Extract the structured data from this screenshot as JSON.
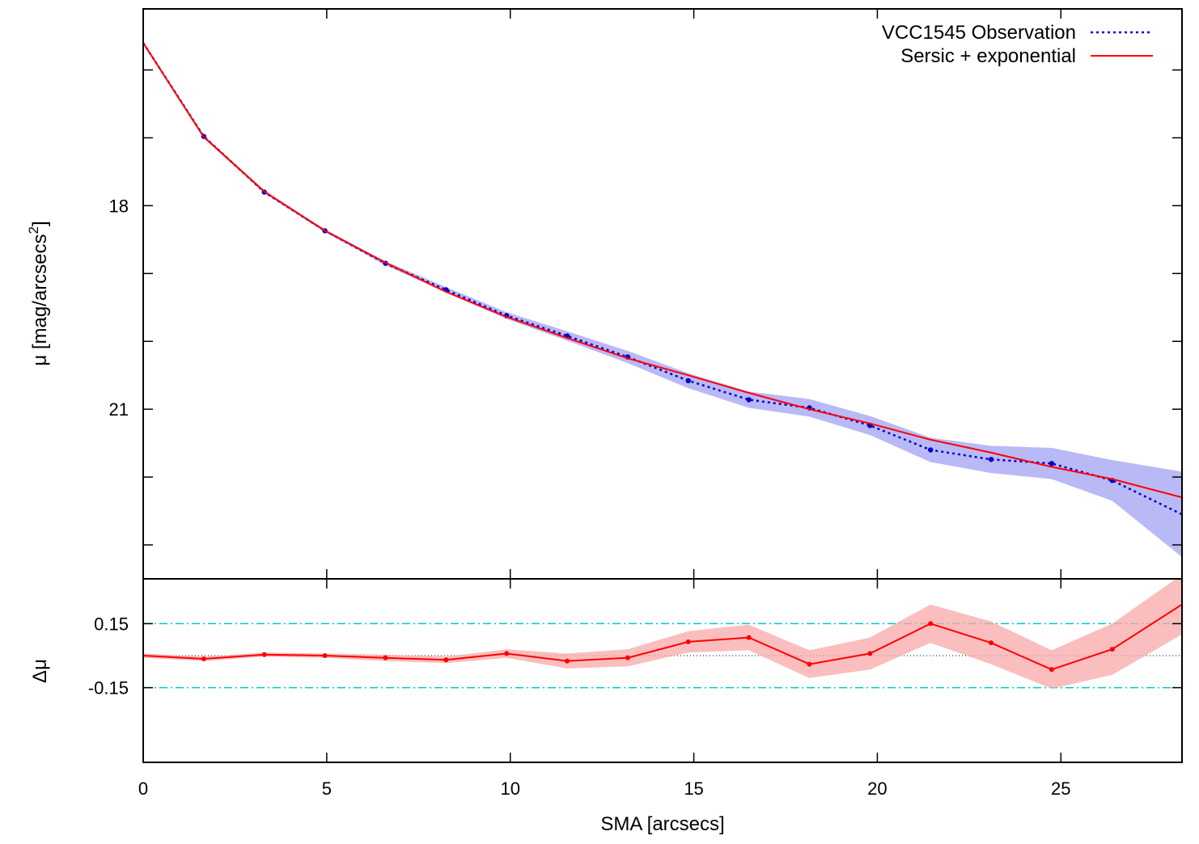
{
  "chart_data": [
    {
      "panel": "profile",
      "type": "line",
      "xlabel": "SMA [arcsecs]",
      "ylabel": "μ [mag/arcsecs",
      "ylabel_sup": "2",
      "ylabel_close": "]",
      "xlim": [
        0,
        28.3
      ],
      "ylim": [
        23.5,
        15.1
      ],
      "y_inverted": true,
      "x_ticks": [
        0,
        5,
        10,
        15,
        20,
        25
      ],
      "x_tick_labels": [
        "0",
        "5",
        "10",
        "15",
        "20",
        "25"
      ],
      "y_ticks": [
        16,
        17,
        18,
        19,
        20,
        21,
        22,
        23
      ],
      "y_tick_labels": [
        "",
        "",
        "18",
        "",
        "",
        "21",
        "",
        ""
      ],
      "legend_position": "top-right",
      "series": [
        {
          "name": "VCC1545 Observation",
          "style": "dotted",
          "color": "#0000cc",
          "band_color": "#8080ee",
          "x": [
            0.0,
            1.65,
            3.3,
            4.95,
            6.6,
            8.25,
            9.9,
            11.55,
            13.2,
            14.85,
            16.5,
            18.15,
            19.8,
            21.45,
            23.1,
            24.75,
            26.4,
            28.3
          ],
          "y": [
            15.6,
            16.98,
            17.8,
            18.37,
            18.85,
            19.24,
            19.62,
            19.92,
            20.23,
            20.58,
            20.86,
            20.98,
            21.24,
            21.6,
            21.74,
            21.8,
            22.05,
            22.55
          ],
          "err": [
            0.01,
            0.02,
            0.02,
            0.02,
            0.03,
            0.04,
            0.05,
            0.07,
            0.09,
            0.11,
            0.12,
            0.13,
            0.14,
            0.18,
            0.2,
            0.23,
            0.3,
            0.63
          ],
          "markers": true
        },
        {
          "name": "Sersic + exponential",
          "style": "solid",
          "color": "#ff0000",
          "x": [
            0.0,
            1.65,
            3.3,
            4.95,
            6.6,
            8.25,
            9.9,
            11.55,
            13.2,
            14.85,
            16.5,
            18.15,
            19.8,
            21.45,
            23.1,
            24.75,
            26.4,
            28.3
          ],
          "y": [
            15.6,
            16.99,
            17.79,
            18.37,
            18.84,
            19.27,
            19.64,
            19.95,
            20.25,
            20.5,
            20.76,
            21.0,
            21.21,
            21.45,
            21.64,
            21.85,
            22.03,
            22.3
          ]
        }
      ]
    },
    {
      "panel": "residuals",
      "type": "line",
      "ylabel": "Δμ",
      "xlim": [
        0,
        28.3
      ],
      "ylim": [
        -0.5,
        0.36
      ],
      "y_ticks": [
        -0.15,
        0.15
      ],
      "y_tick_labels": [
        "-0.15",
        "0.15"
      ],
      "reference_lines": [
        {
          "y": 0.15,
          "color": "#00c8c8",
          "style": "dash-dot"
        },
        {
          "y": -0.15,
          "color": "#00c8c8",
          "style": "dash-dot"
        },
        {
          "y": 0.0,
          "color": "#000000",
          "style": "dotted"
        }
      ],
      "series": [
        {
          "name": "residual",
          "color": "#ff0000",
          "band_color": "#f8a8a8",
          "x": [
            0.0,
            1.65,
            3.3,
            4.95,
            6.6,
            8.25,
            9.9,
            11.55,
            13.2,
            14.85,
            16.5,
            18.15,
            19.8,
            21.45,
            23.1,
            24.75,
            26.4,
            28.3
          ],
          "y": [
            0.0,
            -0.015,
            0.005,
            0.0,
            -0.01,
            -0.02,
            0.01,
            -0.025,
            -0.01,
            0.065,
            0.085,
            -0.04,
            0.01,
            0.15,
            0.06,
            -0.065,
            0.03,
            0.24
          ],
          "err": [
            0.01,
            0.01,
            0.01,
            0.01,
            0.015,
            0.015,
            0.02,
            0.035,
            0.04,
            0.05,
            0.06,
            0.065,
            0.075,
            0.09,
            0.1,
            0.09,
            0.12,
            0.14
          ]
        }
      ]
    }
  ]
}
